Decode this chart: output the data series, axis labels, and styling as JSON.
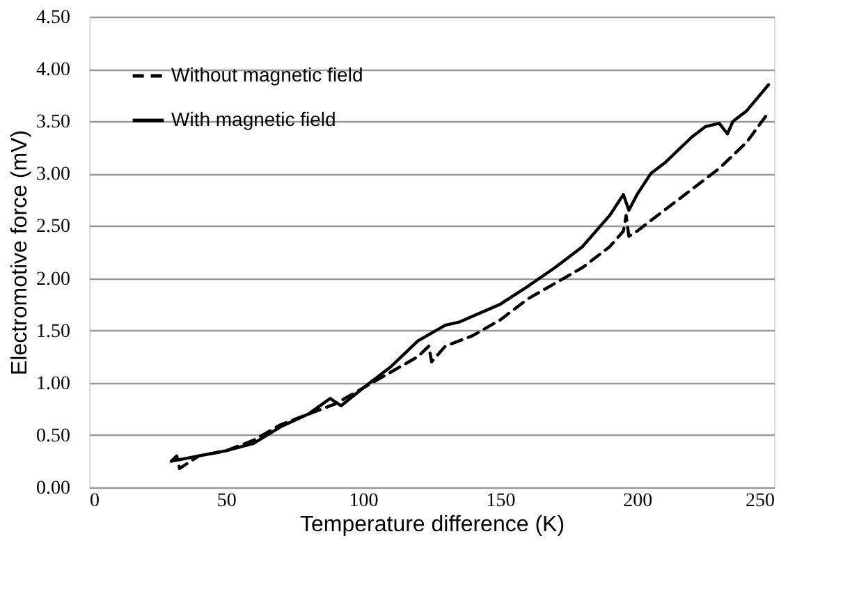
{
  "chart_data": {
    "type": "line",
    "xlabel": "Temperature difference (K)",
    "ylabel": "Electromotive force (mV)",
    "xlim": [
      0,
      250
    ],
    "xticks": [
      0,
      50,
      100,
      150,
      200,
      250
    ],
    "ylim": [
      0,
      4.5
    ],
    "yticks": [
      {
        "value": 0,
        "label": "0.00"
      },
      {
        "value": 0.5,
        "label": "0.50"
      },
      {
        "value": 1,
        "label": "1.00"
      },
      {
        "value": 1.5,
        "label": "1.50"
      },
      {
        "value": 2,
        "label": "2.00"
      },
      {
        "value": 2.5,
        "label": "2.50"
      },
      {
        "value": 3,
        "label": "3.00"
      },
      {
        "value": 3.5,
        "label": "3.50"
      },
      {
        "value": 4,
        "label": "4.00"
      },
      {
        "value": 4.5,
        "label": "4.50"
      }
    ],
    "grid": "y",
    "legend": "top left",
    "marker": "none",
    "series": [
      {
        "name": "Without magnetic field",
        "color": "#000000",
        "line_style": "dashed",
        "x": [
          30,
          32,
          33,
          40,
          50,
          60,
          70,
          80,
          90,
          100,
          110,
          120,
          124,
          125,
          130,
          140,
          150,
          160,
          170,
          180,
          190,
          195,
          196,
          197,
          200,
          210,
          220,
          230,
          240,
          247
        ],
        "values": [
          0.25,
          0.3,
          0.18,
          0.3,
          0.35,
          0.45,
          0.6,
          0.7,
          0.8,
          0.95,
          1.1,
          1.25,
          1.35,
          1.2,
          1.35,
          1.45,
          1.6,
          1.8,
          1.95,
          2.1,
          2.3,
          2.45,
          2.6,
          2.4,
          2.45,
          2.65,
          2.85,
          3.05,
          3.3,
          3.55
        ]
      },
      {
        "name": "With magnetic field",
        "color": "#000000",
        "line_style": "solid",
        "x": [
          30,
          40,
          50,
          60,
          70,
          80,
          88,
          92,
          100,
          110,
          120,
          130,
          135,
          150,
          160,
          170,
          180,
          190,
          195,
          197,
          200,
          205,
          210,
          220,
          225,
          230,
          233,
          235,
          240,
          248
        ],
        "values": [
          0.25,
          0.3,
          0.35,
          0.42,
          0.58,
          0.7,
          0.85,
          0.78,
          0.95,
          1.15,
          1.4,
          1.55,
          1.58,
          1.75,
          1.92,
          2.1,
          2.3,
          2.6,
          2.8,
          2.65,
          2.8,
          3.0,
          3.1,
          3.35,
          3.45,
          3.48,
          3.38,
          3.5,
          3.6,
          3.85
        ]
      }
    ]
  }
}
